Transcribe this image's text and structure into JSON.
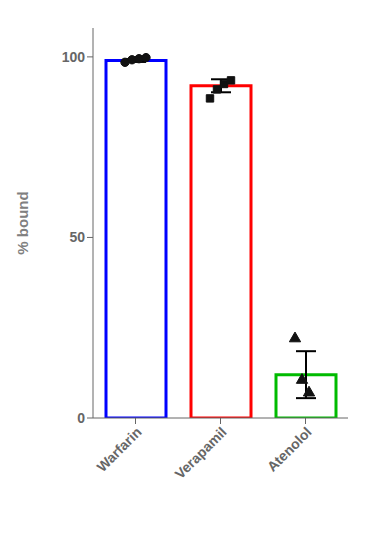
{
  "chart_data": {
    "type": "bar",
    "categories": [
      "Warfarin",
      "Verapamil",
      "Atenolol"
    ],
    "values": [
      99.0,
      92.0,
      12.0
    ],
    "errors": [
      0.4,
      1.8,
      6.5
    ],
    "colors": [
      "#0000FF",
      "#FF0000",
      "#00BB00"
    ],
    "points": [
      {
        "values": [
          98.5,
          99.2,
          99.5,
          99.8
        ],
        "marker": "circle",
        "color": "#111111"
      },
      {
        "values": [
          88.5,
          91.0,
          92.5,
          93.5
        ],
        "marker": "square",
        "color": "#111111"
      },
      {
        "values": [
          22.0,
          10.5,
          7.0
        ],
        "marker": "triangle",
        "color": "#111111"
      }
    ],
    "ylabel": "% bound",
    "ylim": [
      0,
      108
    ],
    "yticks": [
      0,
      50,
      100
    ],
    "grid": false
  }
}
